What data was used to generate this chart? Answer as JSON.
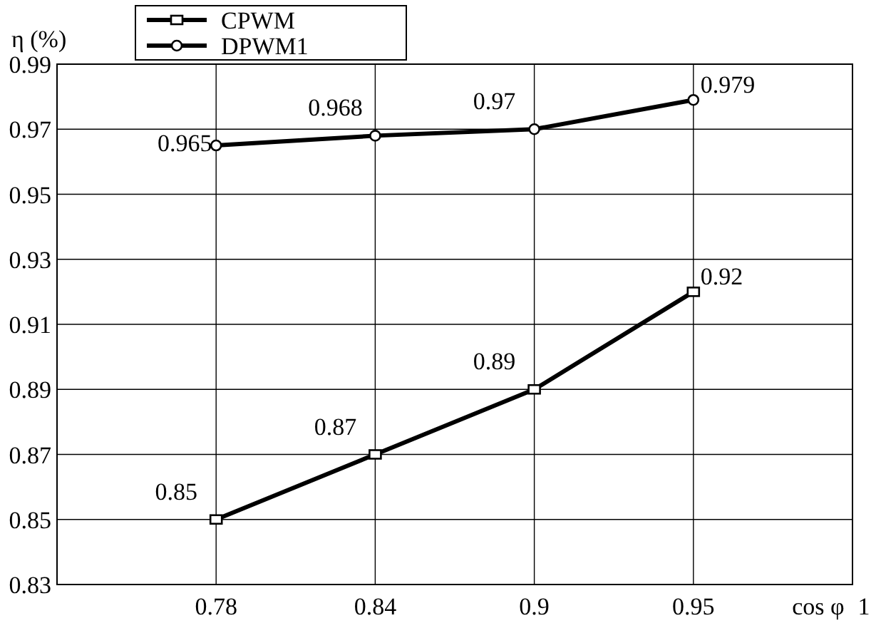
{
  "chart_data": {
    "type": "line",
    "ylabel": "η (%)",
    "xlabel": "cos φ",
    "categories": [
      "0.78",
      "0.84",
      "0.9",
      "0.95",
      "1"
    ],
    "series": [
      {
        "name": "CPWM",
        "color": "#000000",
        "marker": "square",
        "values": [
          0.85,
          0.87,
          0.89,
          0.92,
          null
        ]
      },
      {
        "name": "DPWM1",
        "color": "#000000",
        "marker": "circle",
        "values": [
          0.965,
          0.968,
          0.97,
          0.979,
          null
        ]
      }
    ],
    "ylim": [
      0.83,
      0.99
    ],
    "yticks": [
      "0.83",
      "0.85",
      "0.87",
      "0.89",
      "0.91",
      "0.93",
      "0.95",
      "0.97",
      "0.99"
    ],
    "grid": true,
    "legend": "top left",
    "data_labels": true,
    "line_style": "solid"
  }
}
